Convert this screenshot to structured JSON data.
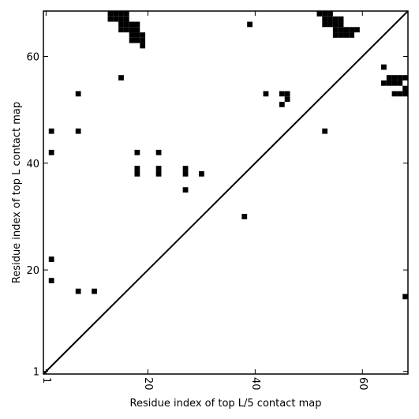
{
  "chart_data": {
    "type": "heatmap",
    "title": "",
    "xlabel": "Residue index of top L/5 contact map",
    "ylabel": "Residue index of top L contact map",
    "xlim": [
      0.5,
      68.5
    ],
    "ylim": [
      0.5,
      68.5
    ],
    "x_ticks": [
      1,
      20,
      40,
      60
    ],
    "y_ticks": [
      1,
      20,
      40,
      60
    ],
    "grid": false,
    "diagonal_line": true,
    "cell_color": "#000000",
    "upper_left_cells": [
      [
        13,
        68
      ],
      [
        14,
        68
      ],
      [
        15,
        68
      ],
      [
        16,
        68
      ],
      [
        13,
        67
      ],
      [
        14,
        67
      ],
      [
        15,
        67
      ],
      [
        16,
        67
      ],
      [
        15,
        66
      ],
      [
        16,
        66
      ],
      [
        17,
        66
      ],
      [
        18,
        66
      ],
      [
        15,
        65
      ],
      [
        16,
        65
      ],
      [
        17,
        65
      ],
      [
        18,
        65
      ],
      [
        17,
        64
      ],
      [
        18,
        64
      ],
      [
        19,
        64
      ],
      [
        17,
        63
      ],
      [
        18,
        63
      ],
      [
        19,
        63
      ],
      [
        19,
        62
      ],
      [
        39,
        66
      ],
      [
        15,
        56
      ],
      [
        7,
        53
      ],
      [
        2,
        46
      ],
      [
        7,
        46
      ],
      [
        2,
        42
      ],
      [
        18,
        42
      ],
      [
        22,
        42
      ],
      [
        18,
        39
      ],
      [
        22,
        39
      ],
      [
        27,
        39
      ],
      [
        18,
        38
      ],
      [
        22,
        38
      ],
      [
        27,
        38
      ],
      [
        30,
        38
      ],
      [
        27,
        35
      ],
      [
        38,
        30
      ],
      [
        2,
        22
      ],
      [
        2,
        18
      ],
      [
        7,
        16
      ],
      [
        10,
        16
      ]
    ],
    "lower_right_cells": [
      [
        52,
        68
      ],
      [
        53,
        68
      ],
      [
        54,
        68
      ],
      [
        53,
        67
      ],
      [
        54,
        67
      ],
      [
        55,
        67
      ],
      [
        56,
        67
      ],
      [
        53,
        66
      ],
      [
        54,
        66
      ],
      [
        55,
        66
      ],
      [
        56,
        66
      ],
      [
        55,
        65
      ],
      [
        56,
        65
      ],
      [
        57,
        65
      ],
      [
        58,
        65
      ],
      [
        59,
        65
      ],
      [
        55,
        64
      ],
      [
        56,
        64
      ],
      [
        57,
        64
      ],
      [
        58,
        64
      ],
      [
        64,
        58
      ],
      [
        65,
        56
      ],
      [
        66,
        56
      ],
      [
        67,
        56
      ],
      [
        68,
        56
      ],
      [
        64,
        55
      ],
      [
        65,
        55
      ],
      [
        66,
        55
      ],
      [
        67,
        55
      ],
      [
        68,
        54
      ],
      [
        42,
        53
      ],
      [
        45,
        53
      ],
      [
        46,
        53
      ],
      [
        66,
        53
      ],
      [
        67,
        53
      ],
      [
        68,
        53
      ],
      [
        46,
        52
      ],
      [
        45,
        51
      ],
      [
        53,
        46
      ],
      [
        68,
        15
      ]
    ]
  }
}
